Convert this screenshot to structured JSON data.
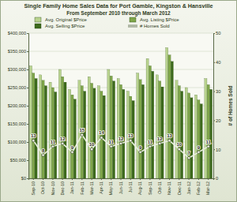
{
  "chart_data": {
    "type": "bar",
    "title": "Single Family Home Sales Data for Port Gamble, Kingston & Hansville",
    "subtitle": "From September 2010 through March 2012",
    "y2label": "# of Homes Sold",
    "categories": [
      "Sep-10",
      "Oct-10",
      "Nov-10",
      "Dec-10",
      "Jan-11",
      "Feb-11",
      "Mar-11",
      "Apr-11",
      "May-11",
      "Jun-11",
      "Jul-11",
      "Aug-11",
      "Sep-11",
      "Oct-11",
      "Nov-11",
      "Dec-11",
      "Jan-12",
      "Feb-12",
      "Mar-12"
    ],
    "series": [
      {
        "name": "Avg. Original $Price",
        "color": "#b9d38f",
        "type": "bar",
        "values": [
          310000,
          285000,
          265000,
          300000,
          245000,
          270000,
          280000,
          255000,
          300000,
          275000,
          240000,
          290000,
          330000,
          285000,
          360000,
          270000,
          250000,
          230000,
          275000
        ]
      },
      {
        "name": "Avg. Listing $Price",
        "color": "#7fa64a",
        "type": "bar",
        "values": [
          290000,
          270000,
          250000,
          280000,
          230000,
          255000,
          262000,
          240000,
          282000,
          258000,
          226000,
          272000,
          310000,
          268000,
          340000,
          255000,
          235000,
          216000,
          258000
        ]
      },
      {
        "name": "Avg. Selling $Price",
        "color": "#3d6a1c",
        "type": "bar",
        "values": [
          275000,
          255000,
          238000,
          265000,
          218000,
          240000,
          248000,
          228000,
          268000,
          245000,
          214000,
          258000,
          295000,
          252000,
          322000,
          240000,
          222000,
          205000,
          245000
        ]
      },
      {
        "name": "# Homes Sold",
        "color": "#e9efdd",
        "type": "line",
        "axis": "y2",
        "marker": "circle",
        "data_labels": true,
        "values": [
          13,
          8,
          11,
          12,
          9,
          15,
          10,
          14,
          11,
          12,
          13,
          9,
          11,
          12,
          13,
          10,
          7,
          9,
          11
        ]
      }
    ],
    "ylim": [
      0,
      400000
    ],
    "yticks": [
      {
        "value": 0,
        "label": "$0"
      },
      {
        "value": 50000,
        "label": "$50,000"
      },
      {
        "value": 100000,
        "label": "$100,000"
      },
      {
        "value": 150000,
        "label": "$150,000"
      },
      {
        "value": 200000,
        "label": "$200,000"
      },
      {
        "value": 250000,
        "label": "$250,000"
      },
      {
        "value": 300000,
        "label": "$300,000"
      },
      {
        "value": 350000,
        "label": "$350,000"
      },
      {
        "value": 400000,
        "label": "$400,000"
      }
    ],
    "y2lim": [
      0,
      50
    ],
    "y2ticks": [
      0,
      10,
      20,
      30,
      40,
      50
    ],
    "grid": true,
    "legend": "top"
  }
}
